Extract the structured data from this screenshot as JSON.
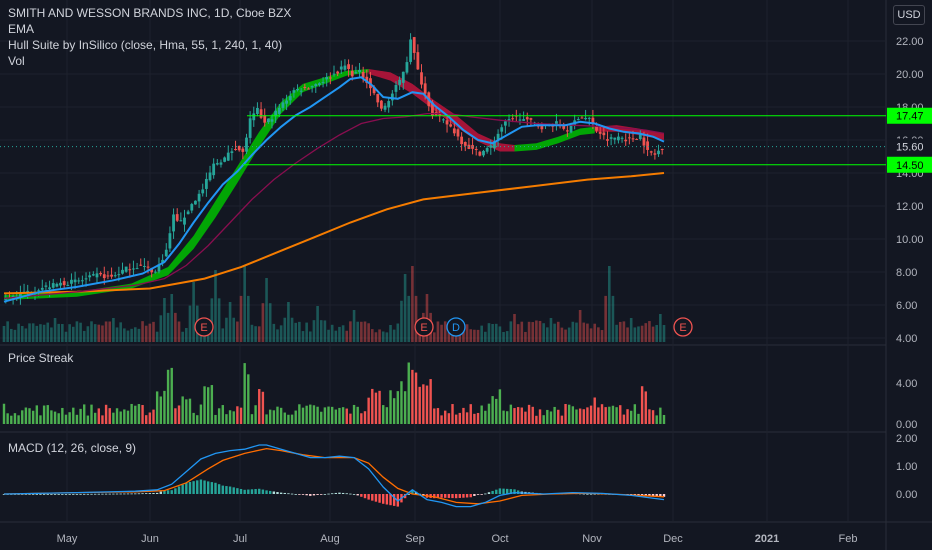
{
  "header": {
    "legend": [
      "SMITH AND WESSON BRANDS INC, 1D, Cboe BZX",
      "EMA",
      "Hull Suite by InSilico (close, Hma, 55, 1, 240, 1, 40)",
      "Vol"
    ],
    "currency": "USD"
  },
  "panes": {
    "streak_title": "Price Streak",
    "macd_title": "MACD (12, 26, close, 9)"
  },
  "colors": {
    "background": "#131722",
    "up": "#26a69a",
    "down": "#ef5350",
    "ema": "#2196f3",
    "ema_slow": "#880e4f",
    "ema_200": "#f57c00",
    "hull_up": "#00c000",
    "hull_down": "#c0143c",
    "levels": "#00ff00",
    "streak_up": "#4caf50",
    "streak_down": "#f05350",
    "macd": "#2196f3",
    "signal": "#ff6d00"
  },
  "chart_data": {
    "type": "candlestick",
    "symbol": "SMITH AND WESSON BRANDS INC",
    "interval": "1D",
    "exchange": "Cboe BZX",
    "x_ticks": [
      "May",
      "Jun",
      "Jul",
      "Aug",
      "Sep",
      "Oct",
      "Nov",
      "Dec",
      "2021",
      "Feb"
    ],
    "price_axis": {
      "ticks": [
        "4.00",
        "6.00",
        "8.00",
        "10.00",
        "12.00",
        "14.00",
        "16.00",
        "18.00",
        "20.00",
        "22.00"
      ],
      "range": [
        3.9,
        24.2
      ]
    },
    "price_labels": [
      {
        "value": 17.47,
        "label": "17.47",
        "kind": "level"
      },
      {
        "value": 15.6,
        "label": "15.60",
        "kind": "last"
      },
      {
        "value": 14.5,
        "label": "14.50",
        "kind": "level"
      }
    ],
    "horizontal_levels": [
      17.47,
      14.5
    ],
    "events": [
      {
        "date": "Jun 11",
        "label": "E"
      },
      {
        "date": "Sep 1",
        "label": "E"
      },
      {
        "date": "Sep 10",
        "label": "D"
      },
      {
        "date": "Dec 2",
        "label": "E"
      }
    ],
    "price_path": [
      [
        0,
        6.3
      ],
      [
        4,
        6.6
      ],
      [
        8,
        6.9
      ],
      [
        12,
        7.1
      ],
      [
        16,
        7.3
      ],
      [
        22,
        7.5
      ],
      [
        26,
        7.8
      ],
      [
        30,
        7.7
      ],
      [
        34,
        8.2
      ],
      [
        38,
        8.4
      ],
      [
        42,
        8.0
      ],
      [
        45,
        9.3
      ],
      [
        47,
        11.4
      ],
      [
        49,
        11.0
      ],
      [
        52,
        12.1
      ],
      [
        55,
        13.0
      ],
      [
        58,
        14.5
      ],
      [
        61,
        14.9
      ],
      [
        64,
        15.6
      ],
      [
        66,
        15.2
      ],
      [
        68,
        17.2
      ],
      [
        70,
        17.8
      ],
      [
        72,
        17.0
      ],
      [
        74,
        17.4
      ],
      [
        77,
        18.2
      ],
      [
        80,
        19.0
      ],
      [
        84,
        19.2
      ],
      [
        88,
        19.6
      ],
      [
        91,
        20.0
      ],
      [
        94,
        20.5
      ],
      [
        96,
        20.0
      ],
      [
        98,
        20.1
      ],
      [
        100,
        19.6
      ],
      [
        102,
        18.8
      ],
      [
        104,
        17.8
      ],
      [
        106,
        18.4
      ],
      [
        109,
        19.6
      ],
      [
        111,
        20.8
      ],
      [
        112,
        22.2
      ],
      [
        114,
        20.2
      ],
      [
        116,
        18.8
      ],
      [
        118,
        17.6
      ],
      [
        120,
        17.3
      ],
      [
        123,
        16.8
      ],
      [
        126,
        15.9
      ],
      [
        129,
        15.4
      ],
      [
        131,
        15.2
      ],
      [
        134,
        15.6
      ],
      [
        137,
        16.8
      ],
      [
        140,
        17.4
      ],
      [
        144,
        17.2
      ],
      [
        148,
        16.8
      ],
      [
        152,
        17.0
      ],
      [
        155,
        16.6
      ],
      [
        158,
        17.4
      ],
      [
        161,
        17.3
      ],
      [
        163,
        16.6
      ],
      [
        166,
        16.0
      ],
      [
        169,
        16.2
      ],
      [
        172,
        16.0
      ],
      [
        175,
        16.3
      ],
      [
        177,
        15.3
      ],
      [
        179,
        15.1
      ],
      [
        181,
        15.6
      ]
    ],
    "ema_fast": [
      [
        0,
        6.2
      ],
      [
        10,
        6.8
      ],
      [
        20,
        7.1
      ],
      [
        30,
        7.5
      ],
      [
        38,
        7.9
      ],
      [
        44,
        8.6
      ],
      [
        48,
        9.7
      ],
      [
        52,
        11.0
      ],
      [
        56,
        12.2
      ],
      [
        60,
        13.3
      ],
      [
        64,
        14.1
      ],
      [
        68,
        15.1
      ],
      [
        72,
        16.0
      ],
      [
        76,
        16.8
      ],
      [
        80,
        17.5
      ],
      [
        84,
        18.0
      ],
      [
        88,
        18.6
      ],
      [
        92,
        19.2
      ],
      [
        95,
        19.7
      ],
      [
        98,
        19.8
      ],
      [
        101,
        19.3
      ],
      [
        104,
        18.6
      ],
      [
        108,
        18.5
      ],
      [
        112,
        18.9
      ],
      [
        115,
        18.8
      ],
      [
        118,
        18.1
      ],
      [
        122,
        17.4
      ],
      [
        126,
        16.6
      ],
      [
        130,
        16.0
      ],
      [
        134,
        15.8
      ],
      [
        138,
        16.3
      ],
      [
        142,
        16.8
      ],
      [
        146,
        16.9
      ],
      [
        150,
        16.9
      ],
      [
        154,
        16.9
      ],
      [
        158,
        17.1
      ],
      [
        162,
        17.0
      ],
      [
        166,
        16.7
      ],
      [
        170,
        16.5
      ],
      [
        174,
        16.4
      ],
      [
        178,
        16.2
      ],
      [
        181,
        15.9
      ]
    ],
    "ema_slow": [
      [
        0,
        6.4
      ],
      [
        20,
        6.8
      ],
      [
        36,
        7.2
      ],
      [
        44,
        7.6
      ],
      [
        50,
        8.4
      ],
      [
        56,
        9.6
      ],
      [
        62,
        11.0
      ],
      [
        68,
        12.4
      ],
      [
        74,
        13.6
      ],
      [
        80,
        14.6
      ],
      [
        86,
        15.5
      ],
      [
        92,
        16.3
      ],
      [
        98,
        17.0
      ],
      [
        104,
        17.3
      ],
      [
        110,
        17.4
      ],
      [
        116,
        17.6
      ],
      [
        122,
        17.6
      ],
      [
        128,
        17.4
      ],
      [
        136,
        17.2
      ],
      [
        146,
        17.0
      ],
      [
        156,
        16.9
      ],
      [
        166,
        16.8
      ],
      [
        176,
        16.6
      ],
      [
        181,
        16.4
      ]
    ],
    "ema_200": [
      [
        0,
        6.7
      ],
      [
        20,
        6.8
      ],
      [
        40,
        7.0
      ],
      [
        55,
        7.6
      ],
      [
        65,
        8.3
      ],
      [
        75,
        9.2
      ],
      [
        85,
        10.1
      ],
      [
        95,
        11.0
      ],
      [
        105,
        11.8
      ],
      [
        115,
        12.4
      ],
      [
        130,
        12.8
      ],
      [
        145,
        13.2
      ],
      [
        160,
        13.6
      ],
      [
        172,
        13.8
      ],
      [
        181,
        14.0
      ]
    ],
    "hull_band": {
      "upper": [
        [
          0,
          6.6
        ],
        [
          20,
          6.8
        ],
        [
          35,
          7.3
        ],
        [
          45,
          8.3
        ],
        [
          52,
          10.2
        ],
        [
          58,
          12.3
        ],
        [
          64,
          14.4
        ],
        [
          70,
          16.5
        ],
        [
          76,
          18.3
        ],
        [
          82,
          19.4
        ],
        [
          88,
          19.8
        ],
        [
          94,
          20.2
        ],
        [
          100,
          20.3
        ]
      ],
      "lower": [
        [
          0,
          6.3
        ],
        [
          20,
          6.5
        ],
        [
          35,
          7.0
        ],
        [
          45,
          7.8
        ],
        [
          52,
          9.4
        ],
        [
          58,
          11.3
        ],
        [
          64,
          13.4
        ],
        [
          70,
          15.6
        ],
        [
          76,
          17.6
        ],
        [
          82,
          18.9
        ],
        [
          88,
          19.4
        ],
        [
          94,
          19.9
        ],
        [
          100,
          20.1
        ]
      ],
      "down_upper": [
        [
          100,
          20.3
        ],
        [
          106,
          20.1
        ],
        [
          112,
          19.4
        ],
        [
          118,
          18.4
        ],
        [
          124,
          17.5
        ],
        [
          130,
          16.4
        ],
        [
          136,
          15.8
        ],
        [
          140,
          15.7
        ]
      ],
      "down_lower": [
        [
          100,
          20.0
        ],
        [
          106,
          19.6
        ],
        [
          112,
          18.8
        ],
        [
          118,
          17.8
        ],
        [
          124,
          16.8
        ],
        [
          130,
          15.9
        ],
        [
          136,
          15.3
        ],
        [
          140,
          15.3
        ]
      ],
      "up2_upper": [
        [
          140,
          15.7
        ],
        [
          146,
          15.8
        ],
        [
          152,
          16.2
        ],
        [
          158,
          16.7
        ],
        [
          162,
          16.8
        ]
      ],
      "up2_lower": [
        [
          140,
          15.3
        ],
        [
          146,
          15.4
        ],
        [
          152,
          15.8
        ],
        [
          158,
          16.3
        ],
        [
          162,
          16.4
        ]
      ],
      "down2_upper": [
        [
          162,
          16.8
        ],
        [
          168,
          16.9
        ],
        [
          174,
          16.7
        ],
        [
          181,
          16.4
        ]
      ],
      "down2_lower": [
        [
          162,
          16.5
        ],
        [
          168,
          16.5
        ],
        [
          174,
          16.3
        ],
        [
          181,
          16.0
        ]
      ]
    },
    "volume_peaks": [
      [
        0,
        0.2
      ],
      [
        14,
        0.3
      ],
      [
        30,
        0.3
      ],
      [
        44,
        0.55
      ],
      [
        46,
        0.6
      ],
      [
        52,
        0.75
      ],
      [
        58,
        0.9
      ],
      [
        62,
        0.5
      ],
      [
        66,
        0.95
      ],
      [
        72,
        0.8
      ],
      [
        78,
        0.5
      ],
      [
        86,
        0.45
      ],
      [
        96,
        0.4
      ],
      [
        110,
        0.85
      ],
      [
        112,
        0.95
      ],
      [
        116,
        0.6
      ],
      [
        124,
        0.3
      ],
      [
        140,
        0.35
      ],
      [
        150,
        0.3
      ],
      [
        158,
        0.4
      ],
      [
        166,
        0.95
      ],
      [
        172,
        0.3
      ],
      [
        180,
        0.35
      ]
    ],
    "price_streak": {
      "axis_ticks": [
        "0.00",
        "4.00"
      ],
      "range": [
        0,
        6.4
      ],
      "note": "bars up=green, down=red"
    },
    "macd": {
      "axis_ticks": [
        "0.00",
        "1.00",
        "2.00"
      ],
      "range": [
        -0.55,
        2.1
      ],
      "macd_line": [
        [
          0,
          0.0
        ],
        [
          20,
          0.05
        ],
        [
          36,
          0.1
        ],
        [
          42,
          0.15
        ],
        [
          46,
          0.35
        ],
        [
          50,
          0.8
        ],
        [
          54,
          1.25
        ],
        [
          58,
          1.45
        ],
        [
          62,
          1.55
        ],
        [
          66,
          1.6
        ],
        [
          70,
          1.75
        ],
        [
          72,
          1.75
        ],
        [
          76,
          1.6
        ],
        [
          80,
          1.45
        ],
        [
          84,
          1.3
        ],
        [
          88,
          1.3
        ],
        [
          92,
          1.35
        ],
        [
          96,
          1.3
        ],
        [
          100,
          0.9
        ],
        [
          104,
          0.25
        ],
        [
          108,
          -0.25
        ],
        [
          112,
          0.15
        ],
        [
          116,
          -0.2
        ],
        [
          120,
          -0.3
        ],
        [
          124,
          -0.45
        ],
        [
          128,
          -0.45
        ],
        [
          132,
          -0.3
        ],
        [
          136,
          -0.05
        ],
        [
          140,
          0.05
        ],
        [
          148,
          0.0
        ],
        [
          156,
          0.05
        ],
        [
          164,
          0.02
        ],
        [
          172,
          -0.05
        ],
        [
          181,
          -0.2
        ]
      ],
      "signal_line": [
        [
          0,
          0.0
        ],
        [
          20,
          0.05
        ],
        [
          36,
          0.08
        ],
        [
          44,
          0.12
        ],
        [
          50,
          0.4
        ],
        [
          56,
          0.9
        ],
        [
          60,
          1.2
        ],
        [
          66,
          1.45
        ],
        [
          72,
          1.62
        ],
        [
          76,
          1.55
        ],
        [
          82,
          1.4
        ],
        [
          88,
          1.3
        ],
        [
          96,
          1.3
        ],
        [
          100,
          1.1
        ],
        [
          104,
          0.6
        ],
        [
          108,
          0.2
        ],
        [
          112,
          0.0
        ],
        [
          118,
          -0.1
        ],
        [
          124,
          -0.3
        ],
        [
          130,
          -0.35
        ],
        [
          136,
          -0.25
        ],
        [
          142,
          -0.05
        ],
        [
          150,
          0.0
        ],
        [
          160,
          0.03
        ],
        [
          170,
          -0.02
        ],
        [
          181,
          -0.1
        ]
      ]
    }
  }
}
